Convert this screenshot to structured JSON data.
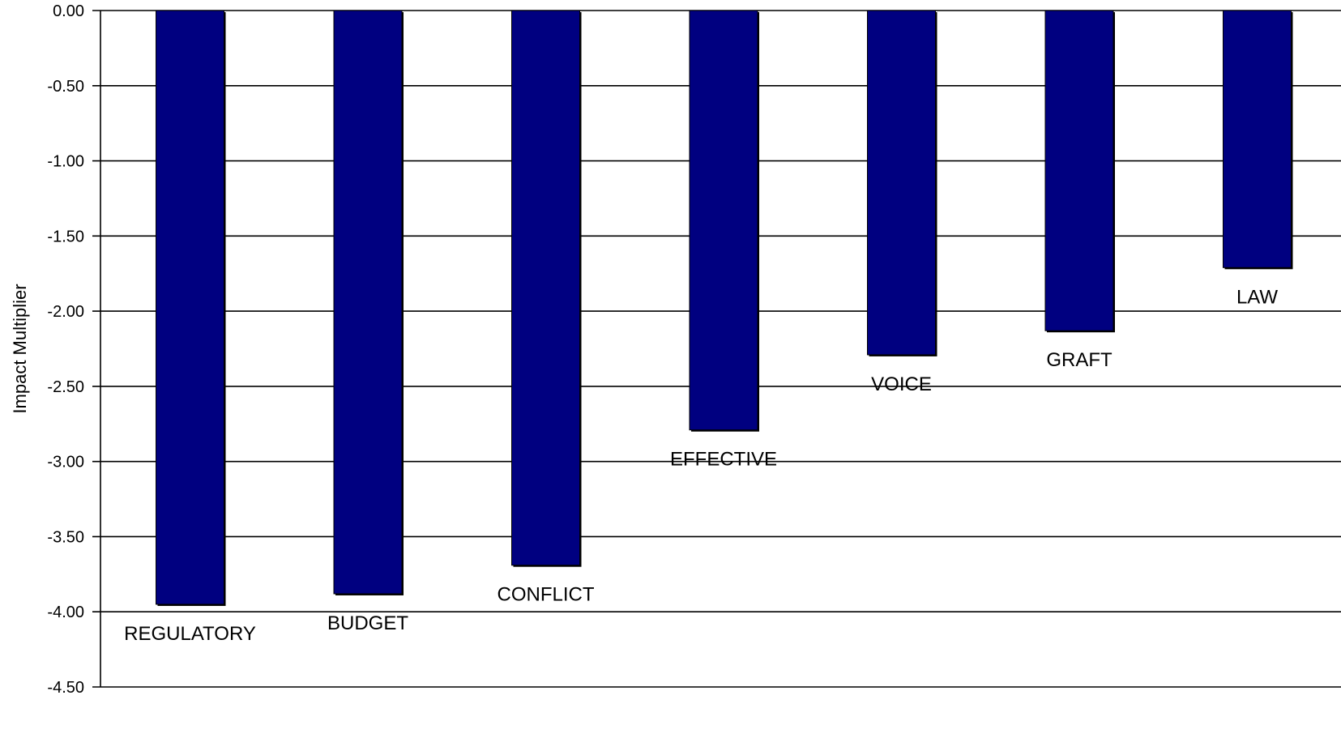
{
  "chart_data": {
    "type": "bar",
    "ylabel": "Impact Multiplier",
    "ylim": [
      -4.5,
      0
    ],
    "yticks": [
      0,
      -0.5,
      -1,
      -1.5,
      -2,
      -2.5,
      -3,
      -3.5,
      -4,
      -4.5
    ],
    "ytick_labels": [
      "0.00",
      "-0.50",
      "-1.00",
      "-1.50",
      "-2.00",
      "-2.50",
      "-3.00",
      "-3.50",
      "-4.00",
      "-4.50"
    ],
    "categories": [
      "REGULATORY",
      "BUDGET",
      "CONFLICT",
      "EFFECTIVE",
      "VOICE",
      "GRAFT",
      "LAW"
    ],
    "values": [
      -3.95,
      -3.88,
      -3.69,
      -2.79,
      -2.29,
      -2.13,
      -1.71
    ],
    "grid": true,
    "bar_color": "#000080"
  }
}
